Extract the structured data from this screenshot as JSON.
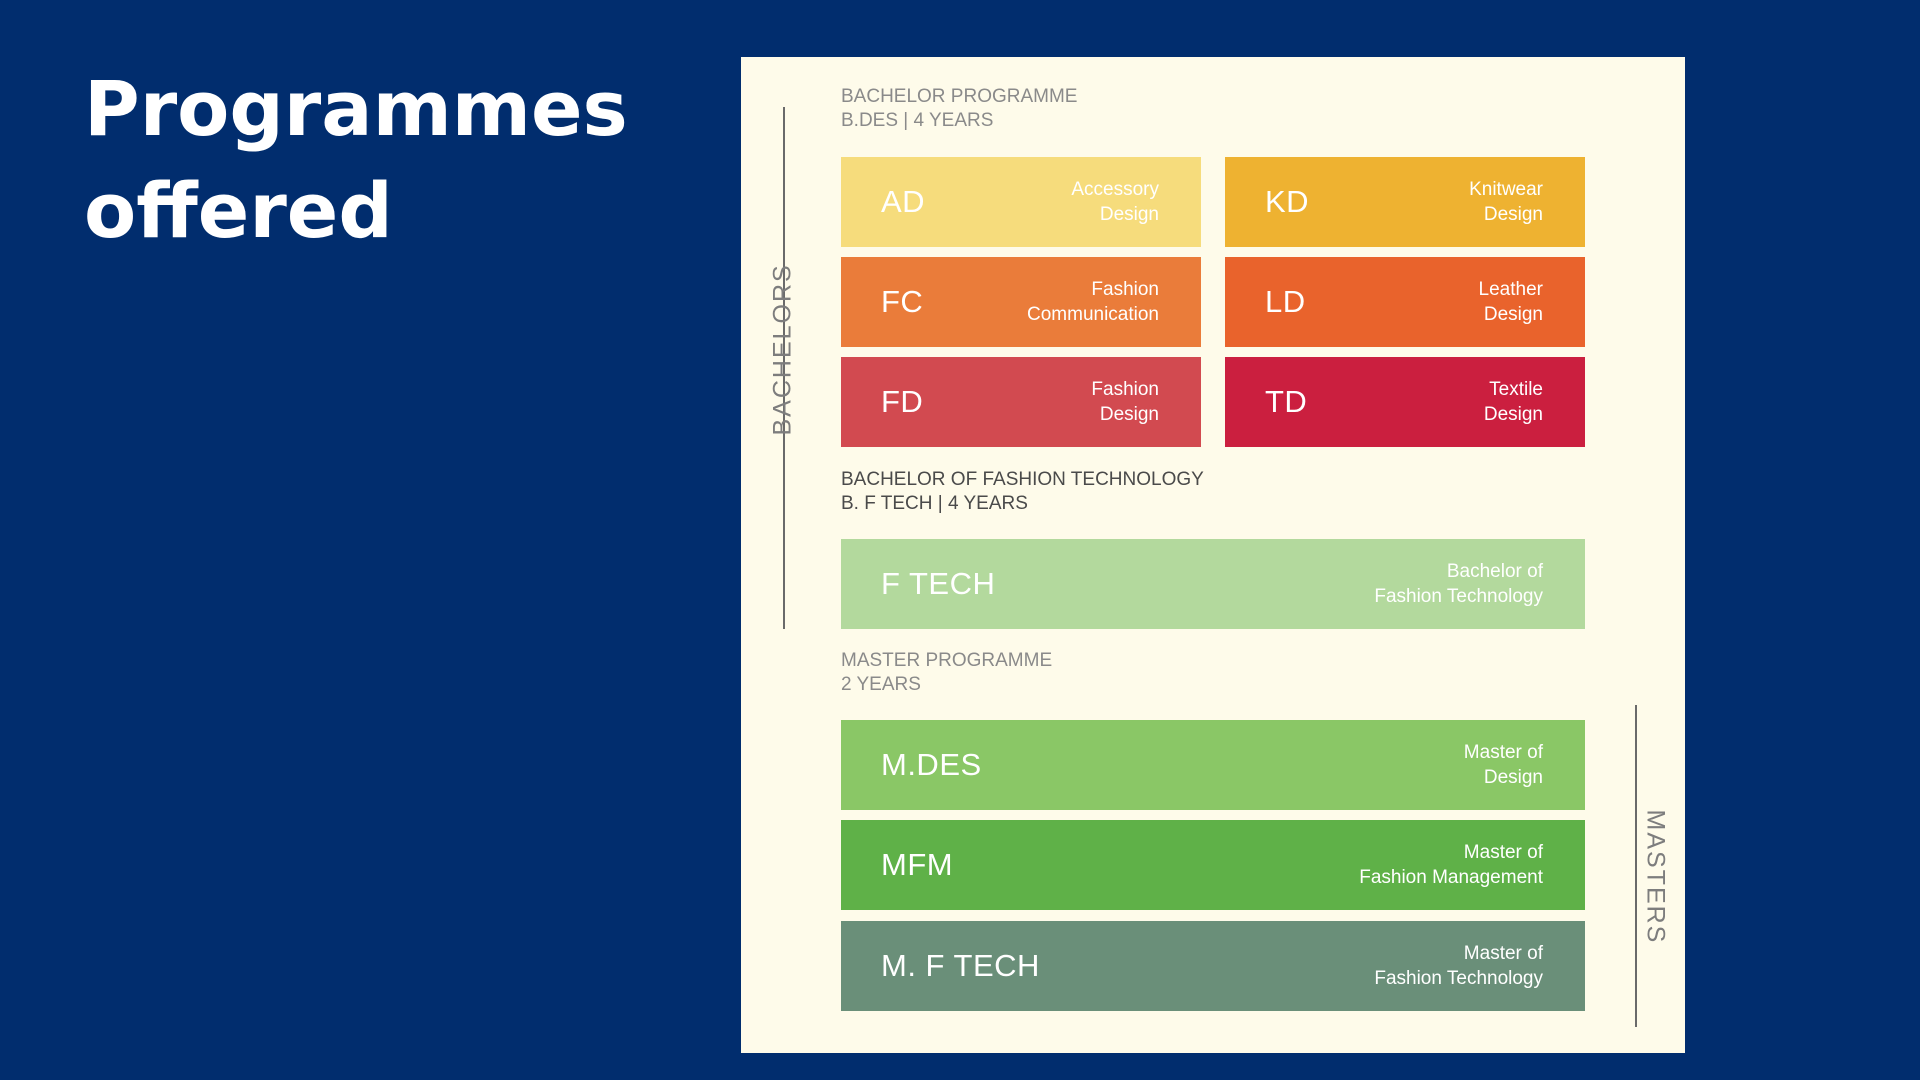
{
  "title": {
    "line1": "Programmes",
    "line2": "offered"
  },
  "side_labels": {
    "bachelors": "BACHELORS",
    "masters": "MASTERS"
  },
  "sections": {
    "bachelor": {
      "line1": "BACHELOR PROGRAMME",
      "line2": "B.DES  |  4 YEARS"
    },
    "bftech": {
      "line1": "BACHELOR OF FASHION TECHNOLOGY",
      "line2": "B. F TECH  |  4 YEARS"
    },
    "master": {
      "line1": "MASTER PROGRAMME",
      "line2": "2 YEARS"
    }
  },
  "programmes": {
    "ad": {
      "code": "AD",
      "name": "Accessory\nDesign",
      "color": "#f6dc7c"
    },
    "kd": {
      "code": "KD",
      "name": "Knitwear\nDesign",
      "color": "#eeb231"
    },
    "fc": {
      "code": "FC",
      "name": "Fashion\nCommunication",
      "color": "#ea7c3a"
    },
    "ld": {
      "code": "LD",
      "name": "Leather\nDesign",
      "color": "#e9632c"
    },
    "fd": {
      "code": "FD",
      "name": "Fashion\nDesign",
      "color": "#d24a50"
    },
    "td": {
      "code": "TD",
      "name": "Textile\nDesign",
      "color": "#cb1f3f"
    },
    "ftech": {
      "code": "F TECH",
      "name": "Bachelor of\nFashion Technology",
      "color": "#b3d99d"
    },
    "mdes": {
      "code": "M.DES",
      "name": "Master of\nDesign",
      "color": "#8ac766"
    },
    "mfm": {
      "code": "MFM",
      "name": "Master of\nFashion Management",
      "color": "#5fb148"
    },
    "mftech": {
      "code": "M. F TECH",
      "name": "Master of\nFashion Technology",
      "color": "#6a8f79"
    }
  }
}
